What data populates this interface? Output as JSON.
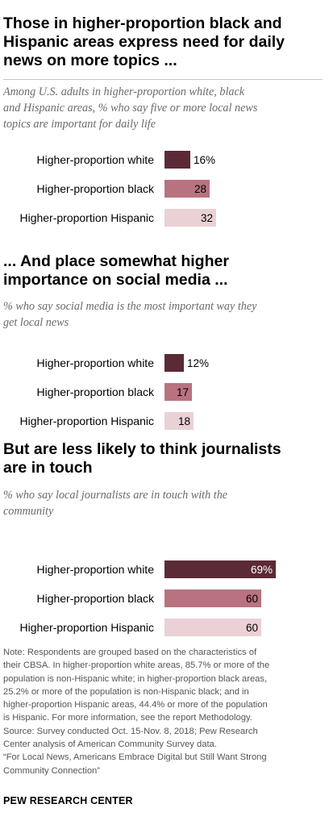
{
  "panels": [
    {
      "title": [
        "Those in higher-proportion black and",
        "Hispanic areas express need for daily",
        "news on more topics ..."
      ],
      "subtitle": [
        "Among U.S. adults in higher-proportion white, black",
        "and Hispanic areas, % who say five or more local news",
        "topics are important for daily life"
      ]
    },
    {
      "title": [
        "... And place somewhat higher",
        "importance on social media ..."
      ],
      "subtitle": [
        "% who say social media is the most important way they",
        "get local news"
      ]
    },
    {
      "title": [
        "But are less likely to think journalists",
        "are in touch"
      ],
      "subtitle": [
        "% who say local journalists are in touch with the",
        "community"
      ]
    }
  ],
  "chart_data": [
    {
      "type": "bar",
      "orientation": "horizontal",
      "categories": [
        "Higher-proportion white",
        "Higher-proportion black",
        "Higher-proportion Hispanic"
      ],
      "values": [
        16,
        28,
        32
      ],
      "value_labels": [
        "16%",
        "28",
        "32"
      ],
      "colors": [
        "#5b2a36",
        "#b9727f",
        "#ead1d5"
      ]
    },
    {
      "type": "bar",
      "orientation": "horizontal",
      "categories": [
        "Higher-proportion white",
        "Higher-proportion black",
        "Higher-proportion Hispanic"
      ],
      "values": [
        12,
        17,
        18
      ],
      "value_labels": [
        "12%",
        "17",
        "18"
      ],
      "colors": [
        "#5b2a36",
        "#b9727f",
        "#ead1d5"
      ]
    },
    {
      "type": "bar",
      "orientation": "horizontal",
      "categories": [
        "Higher-proportion white",
        "Higher-proportion black",
        "Higher-proportion Hispanic"
      ],
      "values": [
        69,
        60,
        60
      ],
      "value_labels": [
        "69%",
        "60",
        "60"
      ],
      "colors": [
        "#5b2a36",
        "#b9727f",
        "#ead1d5"
      ]
    }
  ],
  "note_lines": [
    "Note: Respondents are grouped based on the characteristics of",
    "their CBSA. In higher-proportion white areas, 85.7% or more of the",
    "population is non-Hispanic white; in higher-proportion black areas,",
    "25.2% or more of the population is non-Hispanic black; and in",
    "higher-proportion Hispanic areas, 44.4% or more of the population",
    "is Hispanic. For more information, see the report Methodology.",
    "Source: Survey conducted Oct. 15-Nov. 8, 2018; Pew Research",
    "Center analysis of American Community Survey data.",
    "“For Local News, Americans Embrace Digital but Still Want Strong",
    "Community Connection”"
  ],
  "brand": "PEW RESEARCH CENTER"
}
